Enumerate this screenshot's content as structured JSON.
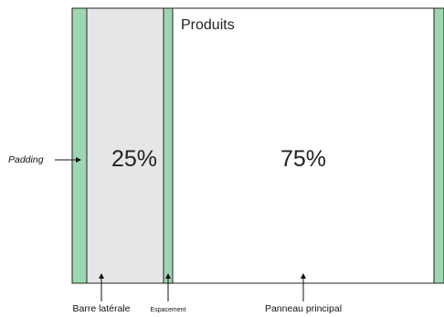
{
  "diagram": {
    "title": "Produits",
    "sidebar_percent": "25%",
    "main_percent": "75%",
    "labels": {
      "padding": "Padding",
      "sidebar": "Barre latérale",
      "gutter": "Espacement",
      "main": "Panneau principal"
    },
    "colors": {
      "padding": "#9fd6b2",
      "sidebar": "#e6e6e8",
      "main": "#ffffff",
      "outline": "#222222"
    }
  }
}
